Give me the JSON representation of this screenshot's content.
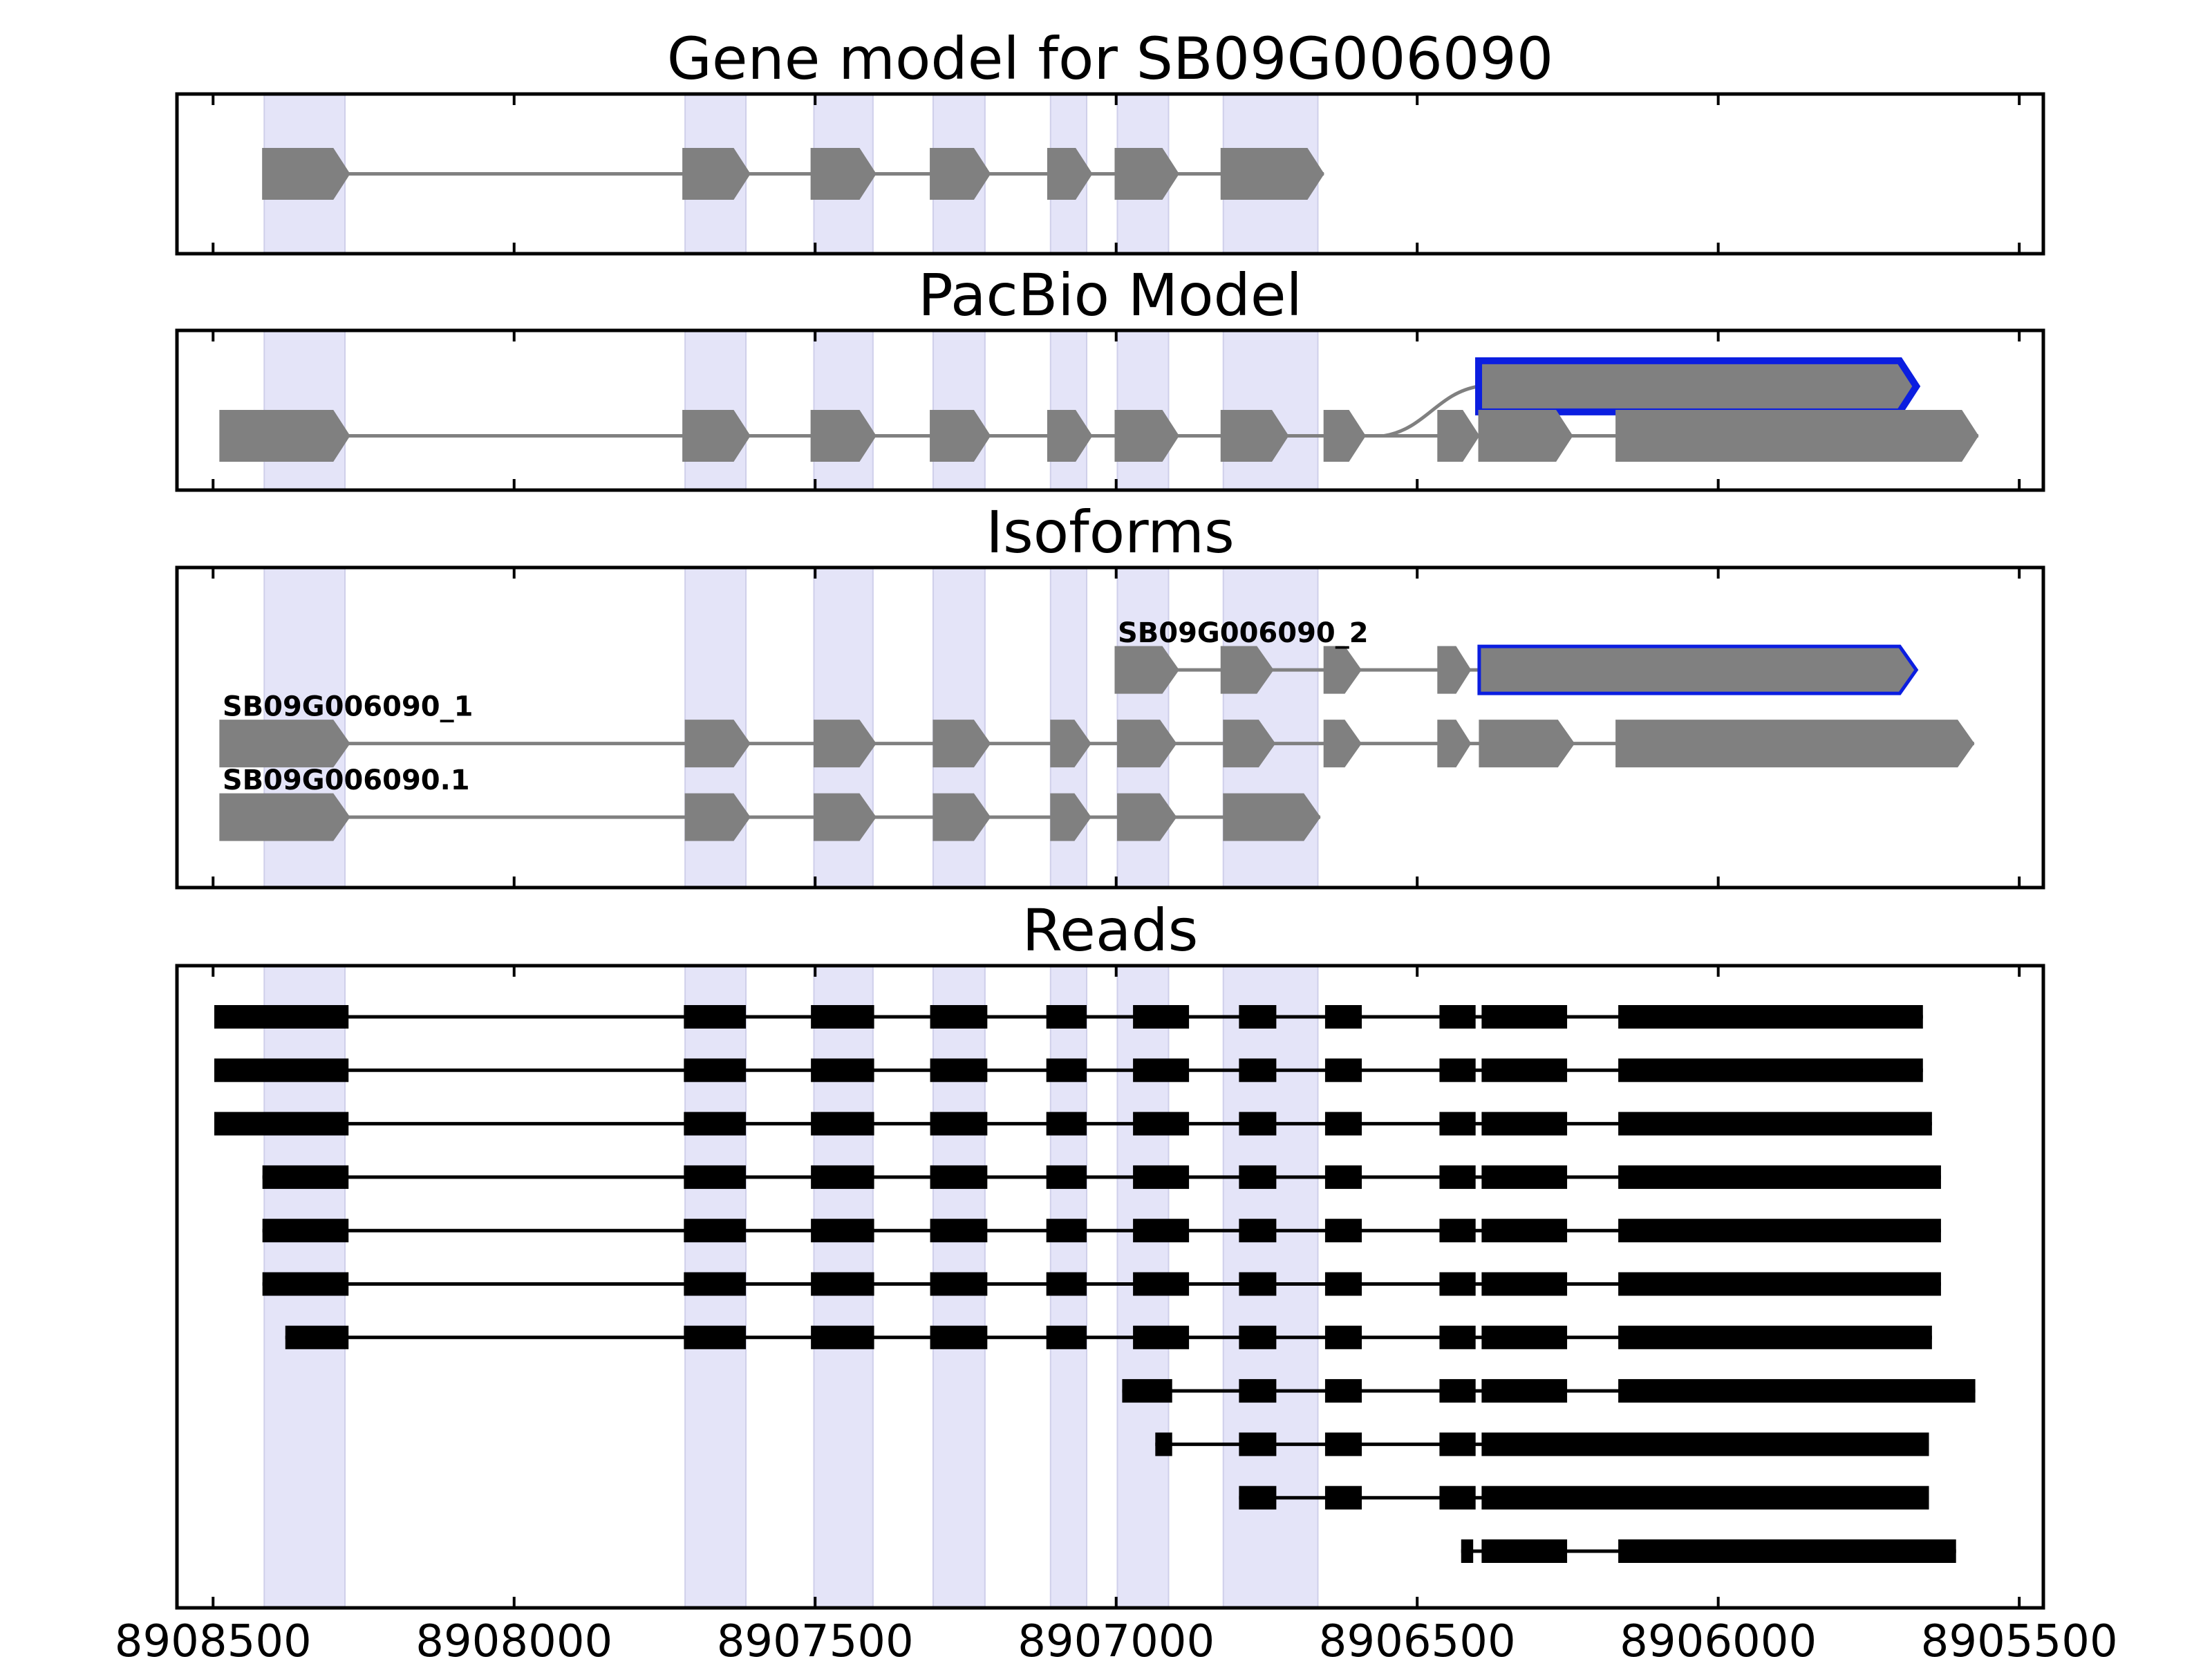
{
  "chart_data": {
    "type": "gene-track",
    "x_axis": {
      "reversed": true,
      "ticks": [
        8908500,
        8908000,
        8907500,
        8907000,
        8906500,
        8906000,
        8905500
      ]
    },
    "highlight_color": "#e4e4f8",
    "highlights": [
      [
        8908415,
        8908281
      ],
      [
        8907716,
        8907615
      ],
      [
        8907502,
        8907404
      ],
      [
        8907304,
        8907218
      ],
      [
        8907109,
        8907049
      ],
      [
        8906998,
        8906913
      ],
      [
        8906822,
        8906665
      ]
    ],
    "panels": [
      {
        "title": "Gene model for SB09G006090",
        "kind": "gene",
        "rows": [
          {
            "label": "",
            "y": 0.5,
            "outlined": false,
            "exons": [
              [
                8908418,
                8908273
              ],
              [
                8907720,
                8907608
              ],
              [
                8907507,
                8907399
              ],
              [
                8907309,
                8907209
              ],
              [
                8907114,
                8907040
              ],
              [
                8907002,
                8906896
              ],
              [
                8906826,
                8906655
              ]
            ]
          }
        ]
      },
      {
        "title": "PacBio Model",
        "kind": "gene",
        "rows": [
          {
            "label": "",
            "y": 0.35,
            "outlined": true,
            "curve_from": 8906555,
            "exons": [
              [
                8906398,
                8905671
              ]
            ]
          },
          {
            "label": "",
            "y": 0.66,
            "outlined": false,
            "exons": [
              [
                8908489,
                8908273
              ],
              [
                8907720,
                8907608
              ],
              [
                8907507,
                8907399
              ],
              [
                8907309,
                8907209
              ],
              [
                8907114,
                8907040
              ],
              [
                8907002,
                8906896
              ],
              [
                8906826,
                8906714
              ],
              [
                8906655,
                8906586
              ],
              [
                8906466,
                8906397
              ],
              [
                8906398,
                8906242
              ],
              [
                8906170,
                8905568
              ]
            ]
          }
        ]
      },
      {
        "title": "Isoforms",
        "kind": "gene",
        "rows": [
          {
            "label": "SB09G006090_2",
            "y": 0.32,
            "outlined": true,
            "exons": [
              [
                8907002,
                8906896
              ],
              [
                8906826,
                8906739
              ],
              [
                8906655,
                8906593
              ],
              [
                8906466,
                8906411
              ],
              [
                8906397,
                8905671
              ]
            ]
          },
          {
            "label": "SB09G006090_1",
            "y": 0.55,
            "outlined": false,
            "exons": [
              [
                8908489,
                8908273
              ],
              [
                8907716,
                8907608
              ],
              [
                8907502,
                8907399
              ],
              [
                8907304,
                8907209
              ],
              [
                8907109,
                8907042
              ],
              [
                8906998,
                8906900
              ],
              [
                8906822,
                8906736
              ],
              [
                8906655,
                8906593
              ],
              [
                8906466,
                8906411
              ],
              [
                8906397,
                8906239
              ],
              [
                8906170,
                8905575
              ]
            ]
          },
          {
            "label": "SB09G006090.1",
            "y": 0.78,
            "outlined": false,
            "exons": [
              [
                8908489,
                8908273
              ],
              [
                8907716,
                8907608
              ],
              [
                8907502,
                8907399
              ],
              [
                8907304,
                8907209
              ],
              [
                8907109,
                8907042
              ],
              [
                8906998,
                8906900
              ],
              [
                8906822,
                8906661
              ]
            ]
          }
        ]
      },
      {
        "title": "Reads",
        "kind": "reads",
        "rows": [
          {
            "exons": [
              [
                8908498,
                8908275
              ],
              [
                8907718,
                8907615
              ],
              [
                8907507,
                8907402
              ],
              [
                8907309,
                8907214
              ],
              [
                8907116,
                8907049
              ],
              [
                8906972,
                8906879
              ],
              [
                8906796,
                8906734
              ],
              [
                8906653,
                8906592
              ],
              [
                8906463,
                8906403
              ],
              [
                8906393,
                8906251
              ],
              [
                8906166,
                8905660
              ]
            ]
          },
          {
            "exons": [
              [
                8908498,
                8908275
              ],
              [
                8907718,
                8907615
              ],
              [
                8907507,
                8907402
              ],
              [
                8907309,
                8907214
              ],
              [
                8907116,
                8907049
              ],
              [
                8906972,
                8906879
              ],
              [
                8906796,
                8906734
              ],
              [
                8906653,
                8906592
              ],
              [
                8906463,
                8906403
              ],
              [
                8906393,
                8906251
              ],
              [
                8906166,
                8905660
              ]
            ]
          },
          {
            "exons": [
              [
                8908498,
                8908275
              ],
              [
                8907718,
                8907615
              ],
              [
                8907507,
                8907402
              ],
              [
                8907309,
                8907214
              ],
              [
                8907116,
                8907049
              ],
              [
                8906972,
                8906879
              ],
              [
                8906796,
                8906734
              ],
              [
                8906653,
                8906592
              ],
              [
                8906463,
                8906403
              ],
              [
                8906393,
                8906251
              ],
              [
                8906166,
                8905645
              ]
            ]
          },
          {
            "exons": [
              [
                8908418,
                8908275
              ],
              [
                8907718,
                8907615
              ],
              [
                8907507,
                8907402
              ],
              [
                8907309,
                8907214
              ],
              [
                8907116,
                8907049
              ],
              [
                8906972,
                8906879
              ],
              [
                8906796,
                8906734
              ],
              [
                8906653,
                8906592
              ],
              [
                8906463,
                8906403
              ],
              [
                8906393,
                8906251
              ],
              [
                8906166,
                8905630
              ]
            ]
          },
          {
            "exons": [
              [
                8908418,
                8908275
              ],
              [
                8907718,
                8907615
              ],
              [
                8907507,
                8907402
              ],
              [
                8907309,
                8907214
              ],
              [
                8907116,
                8907049
              ],
              [
                8906972,
                8906879
              ],
              [
                8906796,
                8906734
              ],
              [
                8906653,
                8906592
              ],
              [
                8906463,
                8906403
              ],
              [
                8906393,
                8906251
              ],
              [
                8906166,
                8905630
              ]
            ]
          },
          {
            "exons": [
              [
                8908418,
                8908275
              ],
              [
                8907718,
                8907615
              ],
              [
                8907507,
                8907402
              ],
              [
                8907309,
                8907214
              ],
              [
                8907116,
                8907049
              ],
              [
                8906972,
                8906879
              ],
              [
                8906796,
                8906734
              ],
              [
                8906653,
                8906592
              ],
              [
                8906463,
                8906403
              ],
              [
                8906393,
                8906251
              ],
              [
                8906166,
                8905630
              ]
            ]
          },
          {
            "exons": [
              [
                8908380,
                8908275
              ],
              [
                8907718,
                8907615
              ],
              [
                8907507,
                8907402
              ],
              [
                8907309,
                8907214
              ],
              [
                8907116,
                8907049
              ],
              [
                8906972,
                8906879
              ],
              [
                8906796,
                8906734
              ],
              [
                8906653,
                8906592
              ],
              [
                8906463,
                8906403
              ],
              [
                8906393,
                8906251
              ],
              [
                8906166,
                8905645
              ]
            ]
          },
          {
            "exons": [
              [
                8906990,
                8906907
              ],
              [
                8906796,
                8906734
              ],
              [
                8906653,
                8906592
              ],
              [
                8906463,
                8906403
              ],
              [
                8906393,
                8906251
              ],
              [
                8906166,
                8905573
              ]
            ]
          },
          {
            "exons": [
              [
                8906935,
                8906907
              ],
              [
                8906796,
                8906734
              ],
              [
                8906653,
                8906592
              ],
              [
                8906463,
                8906403
              ],
              [
                8906393,
                8905650
              ]
            ]
          },
          {
            "exons": [
              [
                8906796,
                8906734
              ],
              [
                8906653,
                8906592
              ],
              [
                8906463,
                8906403
              ],
              [
                8906393,
                8905650
              ]
            ]
          },
          {
            "exons": [
              [
                8906427,
                8906407
              ],
              [
                8906393,
                8906251
              ],
              [
                8906166,
                8905605
              ]
            ]
          }
        ]
      }
    ]
  }
}
